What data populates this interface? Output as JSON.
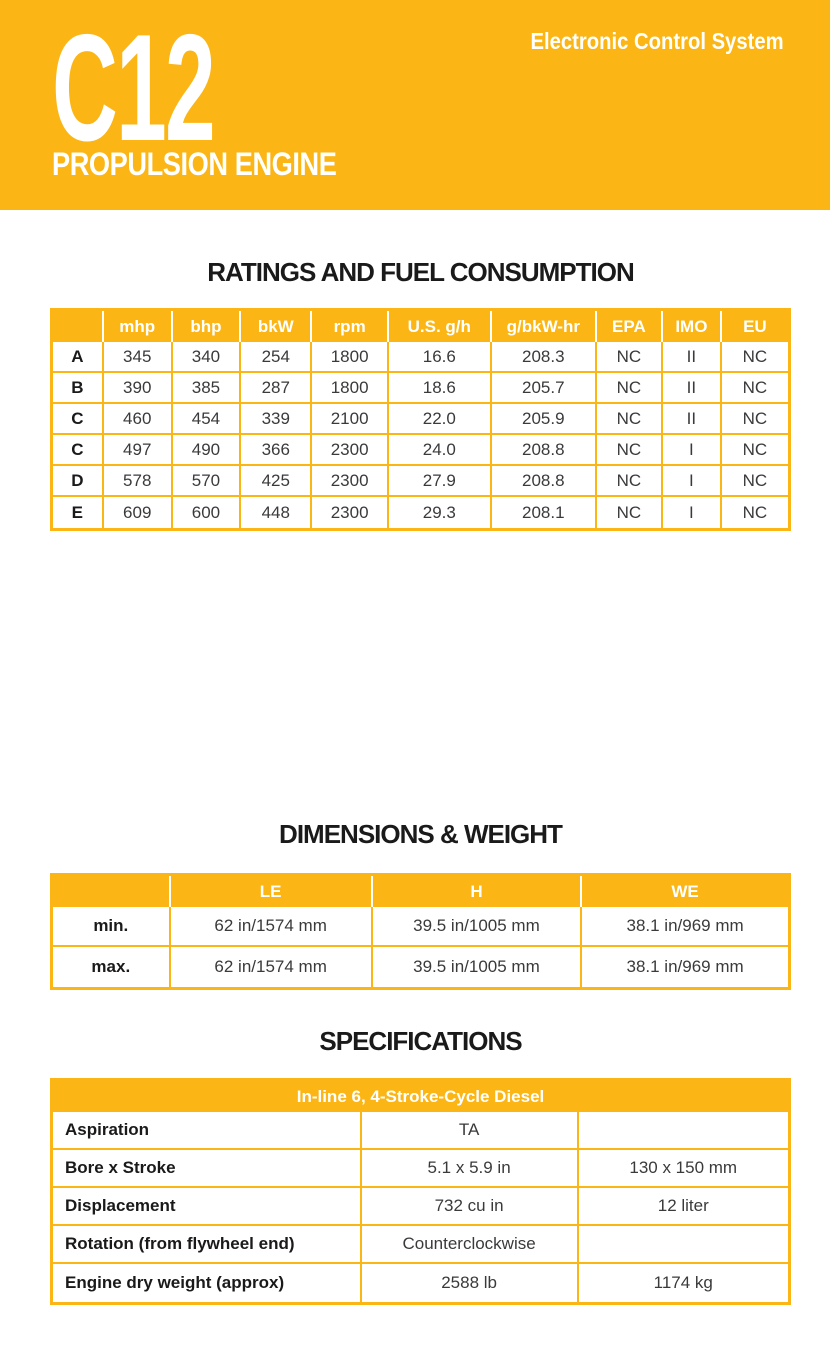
{
  "colors": {
    "brand_yellow": "#FBB615",
    "title_ink": "#1a1a1a",
    "header_text": "#ffffff"
  },
  "header": {
    "model": "C12",
    "subtitle": "PROPULSION ENGINE",
    "tagline": "Electronic Control System"
  },
  "ratings": {
    "title": "RATINGS AND FUEL CONSUMPTION",
    "columns": [
      "",
      "mhp",
      "bhp",
      "bkW",
      "rpm",
      "U.S. g/h",
      "g/bkW-hr",
      "EPA",
      "IMO",
      "EU"
    ],
    "rows": [
      {
        "label": "A",
        "values": [
          "345",
          "340",
          "254",
          "1800",
          "16.6",
          "208.3",
          "NC",
          "II",
          "NC"
        ]
      },
      {
        "label": "B",
        "values": [
          "390",
          "385",
          "287",
          "1800",
          "18.6",
          "205.7",
          "NC",
          "II",
          "NC"
        ]
      },
      {
        "label": "C",
        "values": [
          "460",
          "454",
          "339",
          "2100",
          "22.0",
          "205.9",
          "NC",
          "II",
          "NC"
        ]
      },
      {
        "label": "C",
        "values": [
          "497",
          "490",
          "366",
          "2300",
          "24.0",
          "208.8",
          "NC",
          "I",
          "NC"
        ]
      },
      {
        "label": "D",
        "values": [
          "578",
          "570",
          "425",
          "2300",
          "27.9",
          "208.8",
          "NC",
          "I",
          "NC"
        ]
      },
      {
        "label": "E",
        "values": [
          "609",
          "600",
          "448",
          "2300",
          "29.3",
          "208.1",
          "NC",
          "I",
          "NC"
        ]
      }
    ]
  },
  "dimensions": {
    "title": "DIMENSIONS & WEIGHT",
    "columns": [
      "",
      "LE",
      "H",
      "WE"
    ],
    "rows": [
      {
        "label": "min.",
        "values": [
          "62 in/1574 mm",
          "39.5 in/1005 mm",
          "38.1 in/969 mm"
        ]
      },
      {
        "label": "max.",
        "values": [
          "62 in/1574 mm",
          "39.5 in/1005 mm",
          "38.1 in/969 mm"
        ]
      }
    ]
  },
  "specifications": {
    "title": "SPECIFICATIONS",
    "header": "In-line 6, 4-Stroke-Cycle Diesel",
    "rows": [
      {
        "label": "Aspiration",
        "value1": "TA",
        "value2": ""
      },
      {
        "label": "Bore x Stroke",
        "value1": "5.1 x 5.9 in",
        "value2": "130 x 150 mm"
      },
      {
        "label": "Displacement",
        "value1": "732 cu in",
        "value2": "12 liter"
      },
      {
        "label": "Rotation (from flywheel end)",
        "value1": "Counterclockwise",
        "value2": ""
      },
      {
        "label": "Engine dry weight (approx)",
        "value1": "2588 lb",
        "value2": "1174 kg"
      }
    ]
  }
}
